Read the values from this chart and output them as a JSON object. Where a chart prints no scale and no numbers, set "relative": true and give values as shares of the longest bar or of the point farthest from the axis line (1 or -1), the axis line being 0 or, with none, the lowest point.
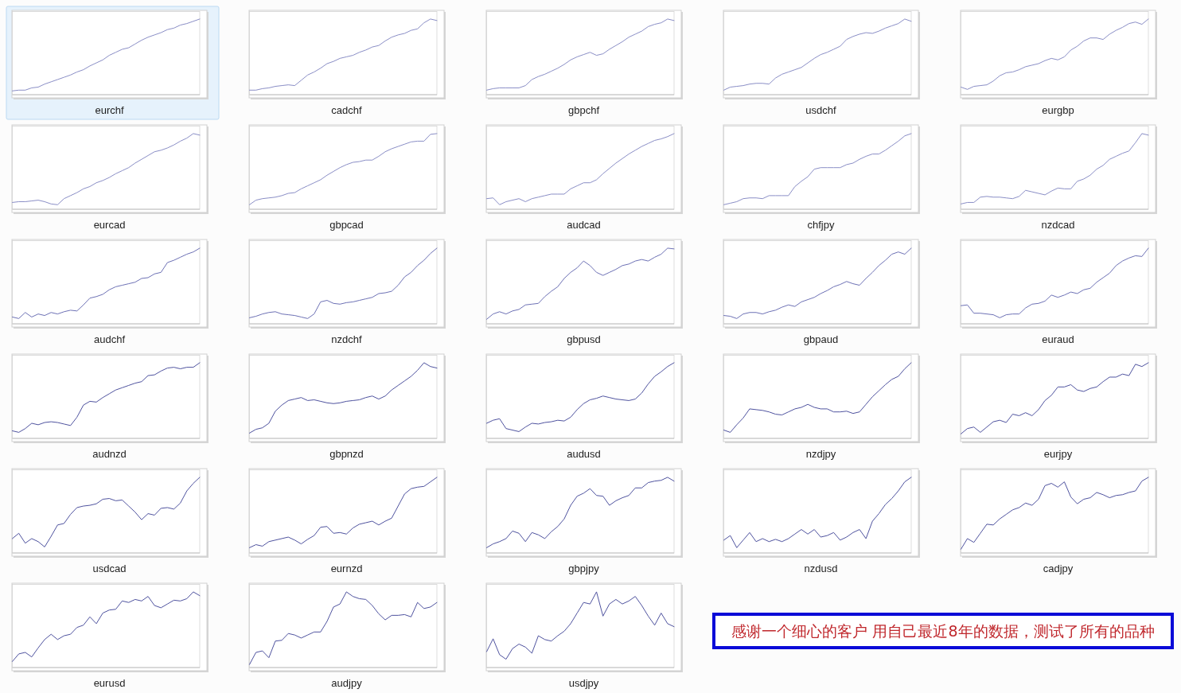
{
  "chart_data": [
    {
      "type": "line",
      "title": "eurchf",
      "relative": true,
      "categories": [
        null,
        null,
        null,
        null,
        null,
        null,
        null,
        null,
        null,
        null,
        null,
        null,
        null,
        null,
        null,
        null,
        null,
        null,
        null,
        null,
        null,
        null,
        null,
        null,
        null,
        null,
        null,
        null,
        null,
        null
      ],
      "color": "#8a8ec6",
      "values": [
        0.05,
        0.06,
        0.06,
        0.09,
        0.1,
        0.14,
        0.17,
        0.2,
        0.23,
        0.26,
        0.3,
        0.33,
        0.38,
        0.42,
        0.46,
        0.52,
        0.56,
        0.6,
        0.62,
        0.67,
        0.72,
        0.76,
        0.79,
        0.82,
        0.86,
        0.88,
        0.92,
        0.94,
        0.97,
        1
      ]
    },
    {
      "type": "line",
      "title": "cadchf",
      "relative": true,
      "categories": [
        null,
        null,
        null,
        null,
        null,
        null,
        null,
        null,
        null,
        null,
        null,
        null,
        null,
        null,
        null,
        null,
        null,
        null,
        null,
        null,
        null,
        null,
        null,
        null,
        null,
        null,
        null,
        null,
        null,
        null
      ],
      "color": "#8a8ec6",
      "values": [
        0.06,
        0.06,
        0.08,
        0.09,
        0.11,
        0.12,
        0.13,
        0.12,
        0.19,
        0.26,
        0.3,
        0.35,
        0.41,
        0.44,
        0.48,
        0.5,
        0.52,
        0.56,
        0.59,
        0.63,
        0.65,
        0.71,
        0.76,
        0.79,
        0.81,
        0.85,
        0.87,
        0.95,
        1,
        0.98
      ]
    },
    {
      "type": "line",
      "title": "gbpchf",
      "relative": true,
      "categories": [
        null,
        null,
        null,
        null,
        null,
        null,
        null,
        null,
        null,
        null,
        null,
        null,
        null,
        null,
        null,
        null,
        null,
        null,
        null,
        null,
        null,
        null,
        null,
        null,
        null,
        null,
        null,
        null,
        null,
        null
      ],
      "color": "#8a8ec6",
      "values": [
        0.06,
        0.08,
        0.09,
        0.09,
        0.09,
        0.09,
        0.12,
        0.2,
        0.24,
        0.27,
        0.31,
        0.35,
        0.4,
        0.46,
        0.5,
        0.53,
        0.56,
        0.52,
        0.54,
        0.6,
        0.65,
        0.7,
        0.76,
        0.8,
        0.84,
        0.9,
        0.93,
        0.95,
        1,
        0.98
      ]
    },
    {
      "type": "line",
      "title": "usdchf",
      "relative": true,
      "categories": [
        null,
        null,
        null,
        null,
        null,
        null,
        null,
        null,
        null,
        null,
        null,
        null,
        null,
        null,
        null,
        null,
        null,
        null,
        null,
        null,
        null,
        null,
        null,
        null,
        null,
        null,
        null,
        null,
        null,
        null
      ],
      "color": "#8a8ec6",
      "values": [
        0.06,
        0.1,
        0.11,
        0.12,
        0.14,
        0.15,
        0.15,
        0.14,
        0.22,
        0.27,
        0.3,
        0.33,
        0.36,
        0.42,
        0.48,
        0.53,
        0.56,
        0.6,
        0.64,
        0.73,
        0.77,
        0.8,
        0.82,
        0.81,
        0.84,
        0.88,
        0.91,
        0.94,
        1,
        0.97
      ]
    },
    {
      "type": "line",
      "title": "eurgbp",
      "relative": true,
      "categories": [
        null,
        null,
        null,
        null,
        null,
        null,
        null,
        null,
        null,
        null,
        null,
        null,
        null,
        null,
        null,
        null,
        null,
        null,
        null,
        null,
        null,
        null,
        null,
        null,
        null,
        null,
        null,
        null,
        null,
        null
      ],
      "color": "#8a8ec6",
      "values": [
        0.1,
        0.07,
        0.11,
        0.12,
        0.13,
        0.18,
        0.25,
        0.29,
        0.3,
        0.33,
        0.37,
        0.39,
        0.41,
        0.45,
        0.48,
        0.46,
        0.5,
        0.59,
        0.64,
        0.71,
        0.75,
        0.75,
        0.73,
        0.8,
        0.85,
        0.89,
        0.94,
        0.96,
        0.93,
        1
      ]
    },
    {
      "type": "line",
      "title": "eurcad",
      "relative": true,
      "categories": [
        null,
        null,
        null,
        null,
        null,
        null,
        null,
        null,
        null,
        null,
        null,
        null,
        null,
        null,
        null,
        null,
        null,
        null,
        null,
        null,
        null,
        null,
        null,
        null,
        null,
        null,
        null,
        null,
        null,
        null
      ],
      "color": "#8a8ec6",
      "values": [
        0.09,
        0.1,
        0.1,
        0.11,
        0.12,
        0.1,
        0.07,
        0.06,
        0.14,
        0.18,
        0.22,
        0.27,
        0.3,
        0.35,
        0.38,
        0.42,
        0.47,
        0.51,
        0.55,
        0.61,
        0.66,
        0.71,
        0.76,
        0.78,
        0.81,
        0.85,
        0.9,
        0.94,
        1,
        0.98
      ]
    },
    {
      "type": "line",
      "title": "gbpcad",
      "relative": true,
      "categories": [
        null,
        null,
        null,
        null,
        null,
        null,
        null,
        null,
        null,
        null,
        null,
        null,
        null,
        null,
        null,
        null,
        null,
        null,
        null,
        null,
        null,
        null,
        null,
        null,
        null,
        null,
        null,
        null,
        null,
        null
      ],
      "color": "#8a8ec6",
      "values": [
        0.06,
        0.12,
        0.14,
        0.15,
        0.16,
        0.18,
        0.21,
        0.22,
        0.27,
        0.31,
        0.35,
        0.39,
        0.45,
        0.5,
        0.55,
        0.59,
        0.62,
        0.63,
        0.65,
        0.65,
        0.7,
        0.76,
        0.8,
        0.83,
        0.86,
        0.89,
        0.9,
        0.9,
        0.99,
        1
      ]
    },
    {
      "type": "line",
      "title": "audcad",
      "relative": true,
      "categories": [
        null,
        null,
        null,
        null,
        null,
        null,
        null,
        null,
        null,
        null,
        null,
        null,
        null,
        null,
        null,
        null,
        null,
        null,
        null,
        null,
        null,
        null,
        null,
        null,
        null,
        null,
        null,
        null,
        null,
        null
      ],
      "color": "#8a8ec6",
      "values": [
        0.14,
        0.15,
        0.06,
        0.1,
        0.12,
        0.14,
        0.1,
        0.14,
        0.16,
        0.18,
        0.2,
        0.2,
        0.2,
        0.27,
        0.31,
        0.35,
        0.35,
        0.39,
        0.47,
        0.54,
        0.61,
        0.67,
        0.73,
        0.78,
        0.83,
        0.87,
        0.91,
        0.93,
        0.96,
        1
      ]
    },
    {
      "type": "line",
      "title": "chfjpy",
      "relative": true,
      "categories": [
        null,
        null,
        null,
        null,
        null,
        null,
        null,
        null,
        null,
        null,
        null,
        null,
        null,
        null,
        null,
        null,
        null,
        null,
        null,
        null,
        null,
        null,
        null,
        null,
        null,
        null,
        null,
        null,
        null,
        null
      ],
      "color": "#8a8ec6",
      "values": [
        0.06,
        0.08,
        0.1,
        0.14,
        0.15,
        0.15,
        0.14,
        0.18,
        0.18,
        0.18,
        0.18,
        0.3,
        0.37,
        0.43,
        0.53,
        0.55,
        0.55,
        0.55,
        0.55,
        0.59,
        0.61,
        0.66,
        0.7,
        0.73,
        0.73,
        0.78,
        0.84,
        0.9,
        0.97,
        1
      ]
    },
    {
      "type": "line",
      "title": "nzdcad",
      "relative": true,
      "categories": [
        null,
        null,
        null,
        null,
        null,
        null,
        null,
        null,
        null,
        null,
        null,
        null,
        null,
        null,
        null,
        null,
        null,
        null,
        null,
        null,
        null,
        null,
        null,
        null,
        null,
        null,
        null,
        null,
        null,
        null
      ],
      "color": "#8a8ec6",
      "values": [
        0.07,
        0.09,
        0.09,
        0.16,
        0.17,
        0.16,
        0.16,
        0.15,
        0.14,
        0.17,
        0.25,
        0.23,
        0.21,
        0.19,
        0.24,
        0.28,
        0.27,
        0.27,
        0.37,
        0.4,
        0.45,
        0.53,
        0.58,
        0.66,
        0.7,
        0.74,
        0.77,
        0.88,
        1,
        0.98
      ]
    },
    {
      "type": "line",
      "title": "audchf",
      "relative": true,
      "categories": [
        null,
        null,
        null,
        null,
        null,
        null,
        null,
        null,
        null,
        null,
        null,
        null,
        null,
        null,
        null,
        null,
        null,
        null,
        null,
        null,
        null,
        null,
        null,
        null,
        null,
        null,
        null,
        null,
        null,
        null
      ],
      "color": "#6d71b5",
      "values": [
        0.09,
        0.07,
        0.15,
        0.09,
        0.13,
        0.11,
        0.15,
        0.13,
        0.16,
        0.18,
        0.17,
        0.25,
        0.34,
        0.36,
        0.39,
        0.45,
        0.49,
        0.51,
        0.53,
        0.55,
        0.6,
        0.61,
        0.66,
        0.68,
        0.81,
        0.84,
        0.88,
        0.92,
        0.95,
        1
      ]
    },
    {
      "type": "line",
      "title": "nzdchf",
      "relative": true,
      "categories": [
        null,
        null,
        null,
        null,
        null,
        null,
        null,
        null,
        null,
        null,
        null,
        null,
        null,
        null,
        null,
        null,
        null,
        null,
        null,
        null,
        null,
        null,
        null,
        null,
        null,
        null,
        null,
        null,
        null,
        null
      ],
      "color": "#6d71b5",
      "values": [
        0.08,
        0.1,
        0.13,
        0.15,
        0.16,
        0.13,
        0.12,
        0.11,
        0.09,
        0.07,
        0.13,
        0.29,
        0.31,
        0.27,
        0.26,
        0.28,
        0.29,
        0.31,
        0.33,
        0.35,
        0.4,
        0.41,
        0.43,
        0.51,
        0.62,
        0.68,
        0.77,
        0.84,
        0.93,
        1
      ]
    },
    {
      "type": "line",
      "title": "gbpusd",
      "relative": true,
      "categories": [
        null,
        null,
        null,
        null,
        null,
        null,
        null,
        null,
        null,
        null,
        null,
        null,
        null,
        null,
        null,
        null,
        null,
        null,
        null,
        null,
        null,
        null,
        null,
        null,
        null,
        null,
        null,
        null,
        null,
        null
      ],
      "color": "#6d71b5",
      "values": [
        0.06,
        0.13,
        0.16,
        0.13,
        0.17,
        0.19,
        0.25,
        0.26,
        0.27,
        0.36,
        0.43,
        0.49,
        0.6,
        0.68,
        0.74,
        0.83,
        0.77,
        0.68,
        0.64,
        0.68,
        0.72,
        0.77,
        0.79,
        0.83,
        0.85,
        0.83,
        0.88,
        0.92,
        1,
        0.99
      ]
    },
    {
      "type": "line",
      "title": "gbpaud",
      "relative": true,
      "categories": [
        null,
        null,
        null,
        null,
        null,
        null,
        null,
        null,
        null,
        null,
        null,
        null,
        null,
        null,
        null,
        null,
        null,
        null,
        null,
        null,
        null,
        null,
        null,
        null,
        null,
        null,
        null,
        null,
        null,
        null
      ],
      "color": "#6d71b5",
      "values": [
        0.11,
        0.1,
        0.07,
        0.13,
        0.15,
        0.15,
        0.13,
        0.16,
        0.18,
        0.22,
        0.25,
        0.23,
        0.29,
        0.32,
        0.35,
        0.4,
        0.44,
        0.49,
        0.52,
        0.56,
        0.53,
        0.51,
        0.6,
        0.68,
        0.77,
        0.84,
        0.92,
        0.95,
        0.92,
        1
      ]
    },
    {
      "type": "line",
      "title": "euraud",
      "relative": true,
      "categories": [
        null,
        null,
        null,
        null,
        null,
        null,
        null,
        null,
        null,
        null,
        null,
        null,
        null,
        null,
        null,
        null,
        null,
        null,
        null,
        null,
        null,
        null,
        null,
        null,
        null,
        null,
        null,
        null,
        null,
        null
      ],
      "color": "#6d71b5",
      "values": [
        0.24,
        0.25,
        0.14,
        0.14,
        0.13,
        0.12,
        0.08,
        0.12,
        0.13,
        0.13,
        0.21,
        0.26,
        0.27,
        0.3,
        0.38,
        0.35,
        0.38,
        0.42,
        0.4,
        0.45,
        0.47,
        0.55,
        0.61,
        0.67,
        0.77,
        0.83,
        0.87,
        0.9,
        0.89,
        1
      ]
    },
    {
      "type": "line",
      "title": "audnzd",
      "relative": true,
      "categories": [
        null,
        null,
        null,
        null,
        null,
        null,
        null,
        null,
        null,
        null,
        null,
        null,
        null,
        null,
        null,
        null,
        null,
        null,
        null,
        null,
        null,
        null,
        null,
        null,
        null,
        null,
        null,
        null,
        null,
        null
      ],
      "color": "#4f539f",
      "values": [
        0.1,
        0.08,
        0.13,
        0.2,
        0.18,
        0.21,
        0.22,
        0.21,
        0.19,
        0.17,
        0.28,
        0.44,
        0.49,
        0.48,
        0.54,
        0.59,
        0.64,
        0.67,
        0.7,
        0.73,
        0.75,
        0.83,
        0.84,
        0.89,
        0.93,
        0.94,
        0.92,
        0.94,
        0.94,
        1
      ]
    },
    {
      "type": "line",
      "title": "gbpnzd",
      "relative": true,
      "categories": [
        null,
        null,
        null,
        null,
        null,
        null,
        null,
        null,
        null,
        null,
        null,
        null,
        null,
        null,
        null,
        null,
        null,
        null,
        null,
        null,
        null,
        null,
        null,
        null,
        null,
        null,
        null,
        null,
        null,
        null
      ],
      "color": "#4f539f",
      "values": [
        0.07,
        0.12,
        0.14,
        0.2,
        0.36,
        0.44,
        0.5,
        0.52,
        0.54,
        0.5,
        0.51,
        0.49,
        0.47,
        0.46,
        0.47,
        0.49,
        0.5,
        0.51,
        0.54,
        0.56,
        0.52,
        0.56,
        0.64,
        0.7,
        0.76,
        0.82,
        0.9,
        1,
        0.95,
        0.93
      ]
    },
    {
      "type": "line",
      "title": "audusd",
      "relative": true,
      "categories": [
        null,
        null,
        null,
        null,
        null,
        null,
        null,
        null,
        null,
        null,
        null,
        null,
        null,
        null,
        null,
        null,
        null,
        null,
        null,
        null,
        null,
        null,
        null,
        null,
        null,
        null,
        null,
        null,
        null,
        null
      ],
      "color": "#4f539f",
      "values": [
        0.2,
        0.24,
        0.26,
        0.13,
        0.11,
        0.09,
        0.15,
        0.2,
        0.19,
        0.21,
        0.22,
        0.24,
        0.23,
        0.28,
        0.38,
        0.46,
        0.51,
        0.53,
        0.56,
        0.54,
        0.52,
        0.51,
        0.5,
        0.52,
        0.6,
        0.72,
        0.82,
        0.88,
        0.95,
        1
      ]
    },
    {
      "type": "line",
      "title": "nzdjpy",
      "relative": true,
      "categories": [
        null,
        null,
        null,
        null,
        null,
        null,
        null,
        null,
        null,
        null,
        null,
        null,
        null,
        null,
        null,
        null,
        null,
        null,
        null,
        null,
        null,
        null,
        null,
        null,
        null,
        null,
        null,
        null,
        null,
        null
      ],
      "color": "#4f539f",
      "values": [
        0.11,
        0.08,
        0.18,
        0.27,
        0.39,
        0.38,
        0.37,
        0.35,
        0.32,
        0.31,
        0.35,
        0.39,
        0.41,
        0.45,
        0.41,
        0.39,
        0.39,
        0.35,
        0.35,
        0.36,
        0.33,
        0.35,
        0.45,
        0.55,
        0.63,
        0.71,
        0.78,
        0.82,
        0.92,
        1
      ]
    },
    {
      "type": "line",
      "title": "eurjpy",
      "relative": true,
      "categories": [
        null,
        null,
        null,
        null,
        null,
        null,
        null,
        null,
        null,
        null,
        null,
        null,
        null,
        null,
        null,
        null,
        null,
        null,
        null,
        null,
        null,
        null,
        null,
        null,
        null,
        null,
        null,
        null,
        null,
        null
      ],
      "color": "#4f539f",
      "values": [
        0.06,
        0.13,
        0.15,
        0.08,
        0.15,
        0.22,
        0.24,
        0.21,
        0.32,
        0.3,
        0.34,
        0.3,
        0.38,
        0.5,
        0.57,
        0.68,
        0.68,
        0.71,
        0.64,
        0.62,
        0.66,
        0.68,
        0.75,
        0.81,
        0.81,
        0.85,
        0.83,
        0.98,
        0.95,
        1
      ]
    },
    {
      "type": "line",
      "title": "usdcad",
      "relative": true,
      "categories": [
        null,
        null,
        null,
        null,
        null,
        null,
        null,
        null,
        null,
        null,
        null,
        null,
        null,
        null,
        null,
        null,
        null,
        null,
        null,
        null,
        null,
        null,
        null,
        null,
        null,
        null,
        null,
        null,
        null,
        null
      ],
      "color": "#4f539f",
      "values": [
        0.19,
        0.26,
        0.13,
        0.19,
        0.15,
        0.08,
        0.22,
        0.37,
        0.39,
        0.51,
        0.6,
        0.62,
        0.63,
        0.65,
        0.71,
        0.72,
        0.69,
        0.7,
        0.62,
        0.54,
        0.44,
        0.52,
        0.5,
        0.59,
        0.6,
        0.58,
        0.66,
        0.82,
        0.92,
        1
      ]
    },
    {
      "type": "line",
      "title": "eurnzd",
      "relative": true,
      "categories": [
        null,
        null,
        null,
        null,
        null,
        null,
        null,
        null,
        null,
        null,
        null,
        null,
        null,
        null,
        null,
        null,
        null,
        null,
        null,
        null,
        null,
        null,
        null,
        null,
        null,
        null,
        null,
        null,
        null,
        null
      ],
      "color": "#4f539f",
      "values": [
        0.07,
        0.11,
        0.09,
        0.15,
        0.17,
        0.19,
        0.21,
        0.17,
        0.12,
        0.18,
        0.23,
        0.34,
        0.35,
        0.26,
        0.27,
        0.25,
        0.33,
        0.38,
        0.4,
        0.42,
        0.37,
        0.42,
        0.46,
        0.62,
        0.78,
        0.85,
        0.87,
        0.88,
        0.94,
        1
      ]
    },
    {
      "type": "line",
      "title": "gbpjpy",
      "relative": true,
      "categories": [
        null,
        null,
        null,
        null,
        null,
        null,
        null,
        null,
        null,
        null,
        null,
        null,
        null,
        null,
        null,
        null,
        null,
        null,
        null,
        null,
        null,
        null,
        null,
        null,
        null,
        null,
        null,
        null,
        null,
        null
      ],
      "color": "#4f539f",
      "values": [
        0.07,
        0.12,
        0.15,
        0.19,
        0.29,
        0.26,
        0.15,
        0.27,
        0.24,
        0.19,
        0.28,
        0.35,
        0.45,
        0.63,
        0.75,
        0.79,
        0.85,
        0.76,
        0.75,
        0.63,
        0.69,
        0.73,
        0.76,
        0.86,
        0.86,
        0.93,
        0.95,
        0.96,
        1,
        0.95
      ]
    },
    {
      "type": "line",
      "title": "nzdusd",
      "relative": true,
      "categories": [
        null,
        null,
        null,
        null,
        null,
        null,
        null,
        null,
        null,
        null,
        null,
        null,
        null,
        null,
        null,
        null,
        null,
        null,
        null,
        null,
        null,
        null,
        null,
        null,
        null,
        null,
        null,
        null,
        null,
        null
      ],
      "color": "#4f539f",
      "values": [
        0.17,
        0.23,
        0.07,
        0.17,
        0.27,
        0.15,
        0.19,
        0.15,
        0.18,
        0.15,
        0.19,
        0.25,
        0.31,
        0.25,
        0.31,
        0.21,
        0.23,
        0.27,
        0.17,
        0.21,
        0.27,
        0.31,
        0.19,
        0.42,
        0.52,
        0.64,
        0.72,
        0.82,
        0.94,
        1
      ]
    },
    {
      "type": "line",
      "title": "cadjpy",
      "relative": true,
      "categories": [
        null,
        null,
        null,
        null,
        null,
        null,
        null,
        null,
        null,
        null,
        null,
        null,
        null,
        null,
        null,
        null,
        null,
        null,
        null,
        null,
        null,
        null,
        null,
        null,
        null,
        null,
        null,
        null,
        null,
        null
      ],
      "color": "#4f539f",
      "values": [
        0.05,
        0.19,
        0.14,
        0.26,
        0.38,
        0.37,
        0.45,
        0.51,
        0.57,
        0.6,
        0.66,
        0.63,
        0.71,
        0.89,
        0.92,
        0.87,
        0.94,
        0.74,
        0.65,
        0.71,
        0.73,
        0.8,
        0.77,
        0.73,
        0.76,
        0.77,
        0.8,
        0.82,
        0.95,
        1
      ]
    },
    {
      "type": "line",
      "title": "eurusd",
      "relative": true,
      "categories": [
        null,
        null,
        null,
        null,
        null,
        null,
        null,
        null,
        null,
        null,
        null,
        null,
        null,
        null,
        null,
        null,
        null,
        null,
        null,
        null,
        null,
        null,
        null,
        null,
        null,
        null,
        null,
        null,
        null,
        null
      ],
      "color": "#4f539f",
      "values": [
        0.08,
        0.18,
        0.2,
        0.14,
        0.26,
        0.37,
        0.44,
        0.37,
        0.42,
        0.44,
        0.53,
        0.56,
        0.67,
        0.58,
        0.72,
        0.76,
        0.77,
        0.88,
        0.86,
        0.9,
        0.88,
        0.94,
        0.82,
        0.79,
        0.84,
        0.89,
        0.88,
        0.91,
        1,
        0.95
      ]
    },
    {
      "type": "line",
      "title": "audjpy",
      "relative": true,
      "categories": [
        null,
        null,
        null,
        null,
        null,
        null,
        null,
        null,
        null,
        null,
        null,
        null,
        null,
        null,
        null,
        null,
        null,
        null,
        null,
        null,
        null,
        null,
        null,
        null,
        null,
        null,
        null,
        null,
        null,
        null
      ],
      "color": "#4f539f",
      "values": [
        0.04,
        0.2,
        0.22,
        0.13,
        0.35,
        0.36,
        0.45,
        0.43,
        0.39,
        0.43,
        0.47,
        0.47,
        0.61,
        0.8,
        0.84,
        1,
        0.94,
        0.91,
        0.9,
        0.82,
        0.71,
        0.63,
        0.69,
        0.69,
        0.7,
        0.67,
        0.86,
        0.78,
        0.8,
        0.86
      ]
    },
    {
      "type": "line",
      "title": "usdjpy",
      "relative": true,
      "categories": [
        null,
        null,
        null,
        null,
        null,
        null,
        null,
        null,
        null,
        null,
        null,
        null,
        null,
        null,
        null,
        null,
        null,
        null,
        null,
        null,
        null,
        null,
        null,
        null,
        null,
        null,
        null,
        null,
        null,
        null
      ],
      "color": "#4f539f",
      "values": [
        0.21,
        0.38,
        0.17,
        0.11,
        0.25,
        0.31,
        0.27,
        0.19,
        0.42,
        0.37,
        0.35,
        0.42,
        0.48,
        0.58,
        0.72,
        0.86,
        0.84,
        1,
        0.68,
        0.84,
        0.9,
        0.84,
        0.88,
        0.94,
        0.82,
        0.68,
        0.56,
        0.72,
        0.58,
        0.54
      ]
    },
    {
      "type": "other",
      "annotations": [
        "感谢一个细心的客户 用自己最近8年的数据，测试了所有的品种"
      ]
    }
  ]
}
